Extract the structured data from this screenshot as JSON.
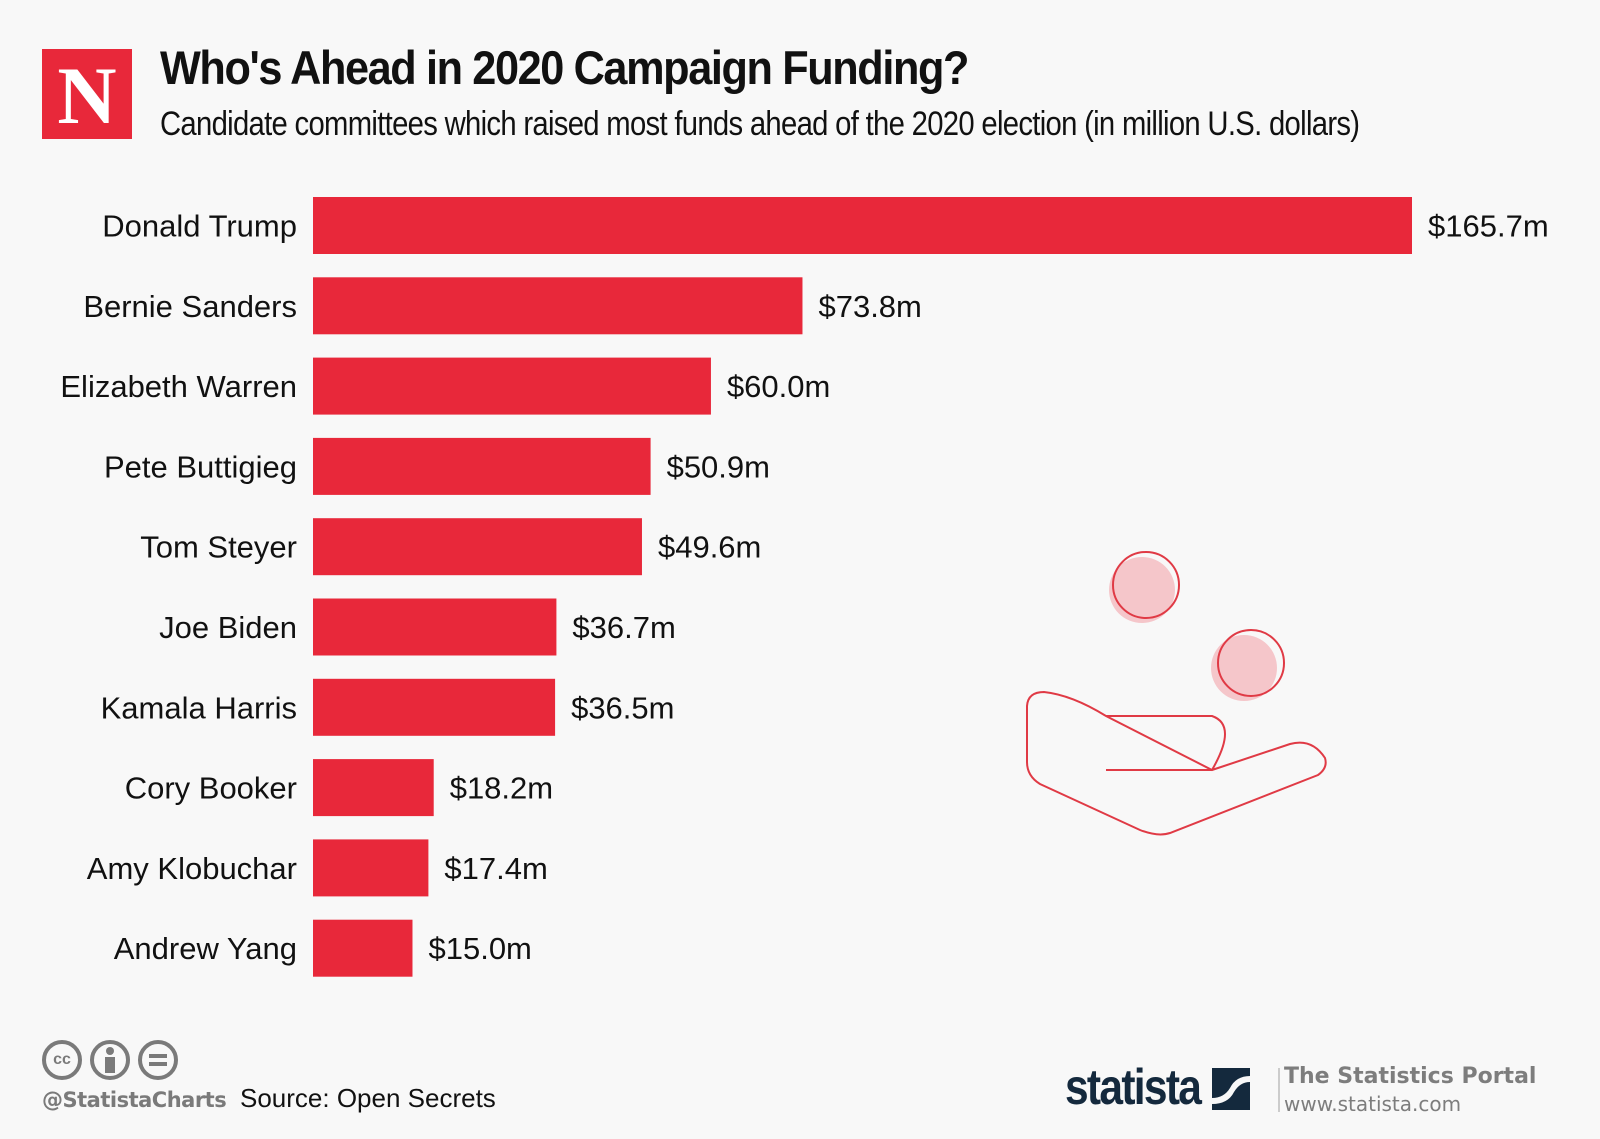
{
  "header": {
    "logo_letter": "N",
    "title": "Who's Ahead in 2020 Campaign Funding?",
    "subtitle": "Candidate committees which raised most funds ahead of the 2020 election (in million U.S. dollars)"
  },
  "colors": {
    "bar": "#e8283a",
    "illustration": "#e03a45",
    "illustration_fill": "#f5c6ca"
  },
  "chart_data": {
    "type": "bar",
    "orientation": "horizontal",
    "title": "Who's Ahead in 2020 Campaign Funding?",
    "subtitle": "Candidate committees which raised most funds ahead of the 2020 election (in million U.S. dollars)",
    "xlabel": "",
    "ylabel": "",
    "categories": [
      "Donald Trump",
      "Bernie Sanders",
      "Elizabeth Warren",
      "Pete Buttigieg",
      "Tom Steyer",
      "Joe Biden",
      "Kamala Harris",
      "Cory Booker",
      "Amy Klobuchar",
      "Andrew Yang"
    ],
    "values": [
      165.7,
      73.8,
      60.0,
      50.9,
      49.6,
      36.7,
      36.5,
      18.2,
      17.4,
      15.0
    ],
    "data_labels": [
      "$165.7m",
      "$73.8m",
      "$60.0m",
      "$50.9m",
      "$49.6m",
      "$36.7m",
      "$36.5m",
      "$18.2m",
      "$17.4m",
      "$15.0m"
    ],
    "xlim": [
      0,
      165.7
    ],
    "grid": false,
    "legend": "none"
  },
  "footer": {
    "license_icons": [
      "cc-icon",
      "attribution-icon",
      "no-derivatives-icon"
    ],
    "cc_text": "cc",
    "handle": "@StatistaCharts",
    "source": "Source: Open Secrets",
    "brand": "statista",
    "portal": "The Statistics Portal",
    "url": "www.statista.com"
  }
}
